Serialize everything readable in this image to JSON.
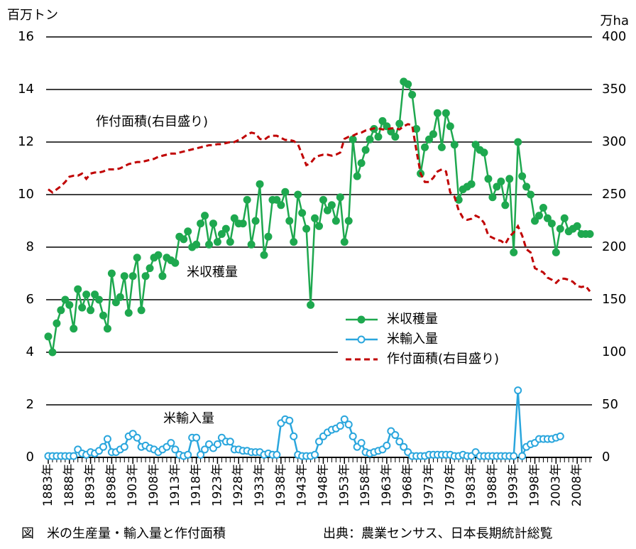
{
  "chart_data": {
    "type": "line",
    "y_label": "百万トン",
    "y2_label": "万ha",
    "annotations": [
      "作付面積(右目盛り)",
      "米収穫量",
      "米輸入量"
    ],
    "caption": "図　米の生産量・輸入量と作付面積",
    "source": "出典：農業センサス、日本長期統計総覧",
    "x": [
      1883,
      1884,
      1885,
      1886,
      1887,
      1888,
      1889,
      1890,
      1891,
      1892,
      1893,
      1894,
      1895,
      1896,
      1897,
      1898,
      1899,
      1900,
      1901,
      1902,
      1903,
      1904,
      1905,
      1906,
      1907,
      1908,
      1909,
      1910,
      1911,
      1912,
      1913,
      1914,
      1915,
      1916,
      1917,
      1918,
      1919,
      1920,
      1921,
      1922,
      1923,
      1924,
      1925,
      1926,
      1927,
      1928,
      1929,
      1930,
      1931,
      1932,
      1933,
      1934,
      1935,
      1936,
      1937,
      1938,
      1939,
      1940,
      1941,
      1942,
      1943,
      1944,
      1945,
      1946,
      1947,
      1948,
      1949,
      1950,
      1951,
      1952,
      1953,
      1954,
      1955,
      1956,
      1957,
      1958,
      1959,
      1960,
      1961,
      1962,
      1963,
      1964,
      1965,
      1966,
      1967,
      1968,
      1969,
      1970,
      1971,
      1972,
      1973,
      1974,
      1975,
      1976,
      1977,
      1978,
      1979,
      1980,
      1981,
      1982,
      1983,
      1984,
      1985,
      1986,
      1987,
      1988,
      1989,
      1990,
      1991,
      1992,
      1993,
      1994,
      1995,
      1996,
      1997,
      1998,
      1999,
      2000,
      2001,
      2002,
      2003,
      2004,
      2005,
      2006,
      2007,
      2008,
      2009,
      2010,
      2011
    ],
    "series": [
      {
        "name": "米収穫量",
        "color": "#1ea84f",
        "marker": "filled",
        "values": [
          4.6,
          4.0,
          5.1,
          5.6,
          6.0,
          5.8,
          4.9,
          6.4,
          5.7,
          6.2,
          5.6,
          6.2,
          6.0,
          5.4,
          4.9,
          7.0,
          5.9,
          6.1,
          6.9,
          5.5,
          6.9,
          7.6,
          5.6,
          6.9,
          7.2,
          7.6,
          7.7,
          6.9,
          7.6,
          7.5,
          7.4,
          8.4,
          8.3,
          8.6,
          8.0,
          8.1,
          8.9,
          9.2,
          8.1,
          8.9,
          8.2,
          8.5,
          8.7,
          8.2,
          9.1,
          8.9,
          8.9,
          9.8,
          8.1,
          9.0,
          10.4,
          7.7,
          8.4,
          9.8,
          9.8,
          9.6,
          10.1,
          9.0,
          8.2,
          10.0,
          9.3,
          8.7,
          5.8,
          9.1,
          8.8,
          9.8,
          9.4,
          9.6,
          9.0,
          9.9,
          8.2,
          9.0,
          12.1,
          10.7,
          11.2,
          11.7,
          12.1,
          12.5,
          12.2,
          12.8,
          12.6,
          12.4,
          12.2,
          12.7,
          14.3,
          14.2,
          13.8,
          12.5,
          10.8,
          11.8,
          12.1,
          12.3,
          13.1,
          11.8,
          13.1,
          12.6,
          11.9,
          9.8,
          10.2,
          10.3,
          10.4,
          11.9,
          11.7,
          11.6,
          10.6,
          9.9,
          10.3,
          10.5,
          9.6,
          10.6,
          7.8,
          12.0,
          10.7,
          10.3,
          10.0,
          9.0,
          9.2,
          9.5,
          9.1,
          8.9,
          7.8,
          8.7,
          9.1,
          8.6,
          8.7,
          8.8,
          8.5,
          8.5,
          8.5
        ]
      },
      {
        "name": "米輸入量",
        "color": "#2aa6dd",
        "marker": "open",
        "values": [
          0.05,
          0.05,
          0.05,
          0.05,
          0.05,
          0.05,
          0.05,
          0.3,
          0.15,
          0.1,
          0.2,
          0.15,
          0.25,
          0.4,
          0.7,
          0.2,
          0.2,
          0.3,
          0.4,
          0.8,
          0.9,
          0.75,
          0.4,
          0.45,
          0.35,
          0.3,
          0.2,
          0.3,
          0.4,
          0.55,
          0.3,
          0.1,
          0.05,
          0.1,
          0.75,
          0.75,
          0.1,
          0.3,
          0.5,
          0.35,
          0.5,
          0.75,
          0.6,
          0.6,
          0.3,
          0.3,
          0.25,
          0.25,
          0.2,
          0.2,
          0.2,
          0.1,
          0.15,
          0.1,
          0.1,
          1.3,
          1.45,
          1.4,
          0.8,
          0.1,
          0.05,
          0.05,
          0.05,
          0.1,
          0.6,
          0.8,
          0.95,
          1.05,
          1.1,
          1.2,
          1.45,
          1.25,
          0.8,
          0.4,
          0.55,
          0.2,
          0.15,
          0.2,
          0.25,
          0.3,
          0.45,
          1.0,
          0.85,
          0.6,
          0.4,
          0.2,
          0.05,
          0.05,
          0.05,
          0.05,
          0.1,
          0.1,
          0.1,
          0.1,
          0.1,
          0.1,
          0.05,
          0.05,
          0.1,
          0.05,
          0.05,
          0.2,
          0.05,
          0.05,
          0.05,
          0.05,
          0.05,
          0.05,
          0.05,
          0.05,
          0.05,
          2.55,
          0.05,
          0.4,
          0.5,
          0.55,
          0.7,
          0.7,
          0.7,
          0.7,
          0.75,
          0.8,
          null,
          null,
          null,
          null,
          null,
          null,
          null
        ]
      },
      {
        "name": "作付面積(右目盛り)",
        "color": "#c00000",
        "line_style": "dashed",
        "axis": "y2",
        "values": [
          255,
          252,
          255,
          258,
          262,
          267,
          268,
          268,
          270,
          265,
          270,
          271,
          271,
          272,
          274,
          274,
          274,
          275,
          277,
          279,
          280,
          281,
          281,
          282,
          283,
          284,
          286,
          287,
          288,
          289,
          289,
          290,
          291,
          292,
          293,
          294,
          295,
          296,
          297,
          297,
          298,
          298,
          299,
          300,
          300,
          302,
          304,
          307,
          309,
          308,
          303,
          302,
          305,
          306,
          306,
          304,
          302,
          302,
          301,
          298,
          288,
          278,
          280,
          285,
          287,
          288,
          288,
          287,
          288,
          290,
          303,
          305,
          306,
          308,
          309,
          311,
          312,
          313,
          313,
          312,
          312,
          313,
          313,
          312,
          315,
          317,
          316,
          292,
          270,
          262,
          262,
          266,
          272,
          274,
          272,
          252,
          248,
          235,
          228,
          226,
          227,
          230,
          228,
          223,
          211,
          209,
          207,
          206,
          203,
          210,
          214,
          220,
          211,
          198,
          195,
          180,
          178,
          176,
          171,
          169,
          166,
          170,
          170,
          169,
          167,
          163,
          162,
          163,
          158
        ]
      }
    ],
    "xlim": [
      1882.5,
      2011.5
    ],
    "xticks": [
      {
        "value": 1883,
        "label": "1883年"
      },
      {
        "value": 1888,
        "label": "1888年"
      },
      {
        "value": 1893,
        "label": "1893年"
      },
      {
        "value": 1898,
        "label": "1898年"
      },
      {
        "value": 1903,
        "label": "1903年"
      },
      {
        "value": 1908,
        "label": "1908年"
      },
      {
        "value": 1913,
        "label": "1913年"
      },
      {
        "value": 1918,
        "label": "1918年"
      },
      {
        "value": 1923,
        "label": "1923年"
      },
      {
        "value": 1928,
        "label": "1928年"
      },
      {
        "value": 1933,
        "label": "1933年"
      },
      {
        "value": 1938,
        "label": "1938年"
      },
      {
        "value": 1943,
        "label": "1943年"
      },
      {
        "value": 1948,
        "label": "1948年"
      },
      {
        "value": 1953,
        "label": "1953年"
      },
      {
        "value": 1958,
        "label": "1958年"
      },
      {
        "value": 1963,
        "label": "1963年"
      },
      {
        "value": 1968,
        "label": "1968年"
      },
      {
        "value": 1973,
        "label": "1973年"
      },
      {
        "value": 1978,
        "label": "1978年"
      },
      {
        "value": 1983,
        "label": "1983年"
      },
      {
        "value": 1988,
        "label": "1988年"
      },
      {
        "value": 1993,
        "label": "1993年"
      },
      {
        "value": 1998,
        "label": "1998年"
      },
      {
        "value": 2003,
        "label": "2003年"
      },
      {
        "value": 2008,
        "label": "2008年"
      }
    ],
    "ylim": [
      0,
      16
    ],
    "yticks": [
      0,
      2,
      4,
      6,
      8,
      10,
      12,
      14,
      16
    ],
    "y2lim": [
      0,
      400
    ],
    "y2ticks": [
      0,
      50,
      100,
      150,
      200,
      250,
      300,
      350,
      400
    ],
    "grid": true,
    "legend": "lower-right"
  }
}
